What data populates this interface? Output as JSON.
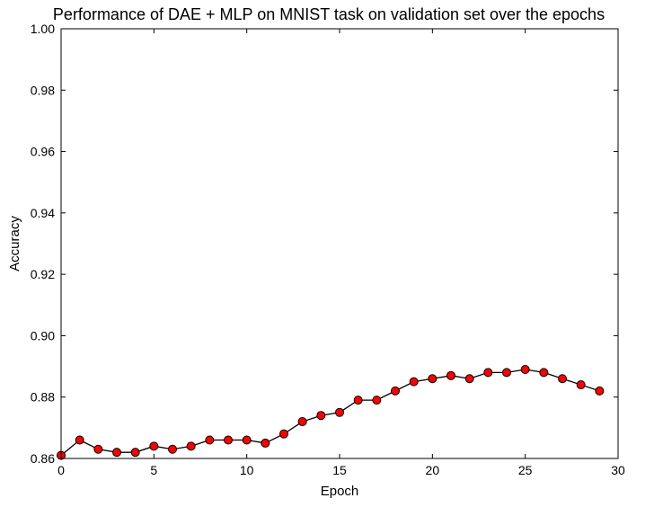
{
  "chart_data": {
    "type": "line",
    "title": "Performance of DAE + MLP on MNIST task on validation set over the epochs",
    "xlabel": "Epoch",
    "ylabel": "Accuracy",
    "xlim": [
      0,
      30
    ],
    "ylim": [
      0.86,
      1.0
    ],
    "xticks": [
      0,
      5,
      10,
      15,
      20,
      25,
      30
    ],
    "xtick_labels": [
      "0",
      "5",
      "10",
      "15",
      "20",
      "25",
      "30"
    ],
    "yticks": [
      0.86,
      0.88,
      0.9,
      0.92,
      0.94,
      0.96,
      0.98,
      1.0
    ],
    "ytick_labels": [
      "0.86",
      "0.88",
      "0.90",
      "0.92",
      "0.94",
      "0.96",
      "0.98",
      "1.00"
    ],
    "grid": false,
    "series": [
      {
        "line_color": "#000000",
        "marker_color": "#ff0000",
        "marker": "circle",
        "x": [
          0,
          1,
          2,
          3,
          4,
          5,
          6,
          7,
          8,
          9,
          10,
          11,
          12,
          13,
          14,
          15,
          16,
          17,
          18,
          19,
          20,
          21,
          22,
          23,
          24,
          25,
          26,
          27,
          28,
          29
        ],
        "y": [
          0.861,
          0.866,
          0.863,
          0.862,
          0.862,
          0.864,
          0.863,
          0.864,
          0.866,
          0.866,
          0.866,
          0.865,
          0.868,
          0.872,
          0.874,
          0.875,
          0.879,
          0.879,
          0.882,
          0.885,
          0.886,
          0.887,
          0.886,
          0.888,
          0.888,
          0.889,
          0.888,
          0.886,
          0.884,
          0.882
        ]
      }
    ]
  }
}
